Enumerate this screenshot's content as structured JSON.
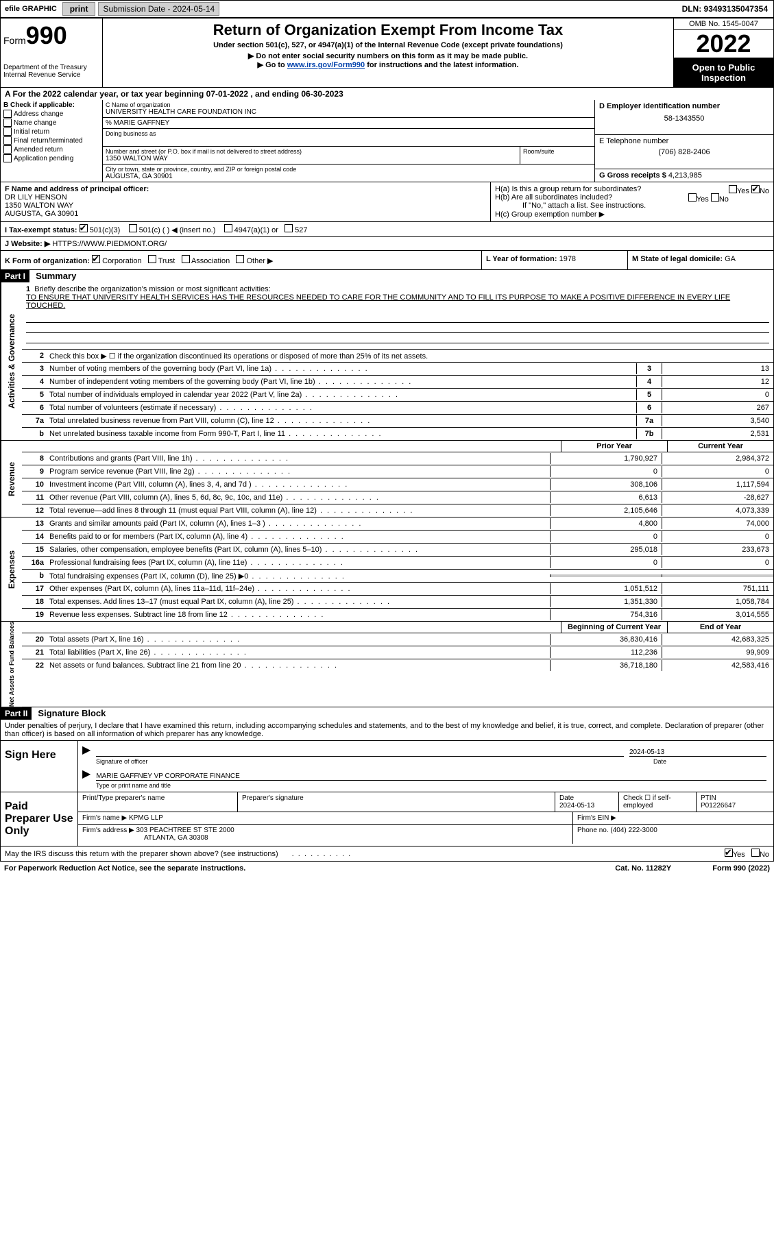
{
  "top": {
    "efile": "efile GRAPHIC",
    "print": "print",
    "sub_date_label": "Submission Date - 2024-05-14",
    "dln": "DLN: 93493135047354"
  },
  "header": {
    "form_prefix": "Form",
    "form_num": "990",
    "dept": "Department of the Treasury",
    "irs": "Internal Revenue Service",
    "title": "Return of Organization Exempt From Income Tax",
    "sub1": "Under section 501(c), 527, or 4947(a)(1) of the Internal Revenue Code (except private foundations)",
    "sub2": "▶ Do not enter social security numbers on this form as it may be made public.",
    "sub3_pre": "▶ Go to ",
    "sub3_link": "www.irs.gov/Form990",
    "sub3_post": " for instructions and the latest information.",
    "omb": "OMB No. 1545-0047",
    "year": "2022",
    "inspect": "Open to Public Inspection"
  },
  "A": {
    "text": "A For the 2022 calendar year, or tax year beginning 07-01-2022    , and ending 06-30-2023"
  },
  "B": {
    "label": "B Check if applicable:",
    "items": [
      "Address change",
      "Name change",
      "Initial return",
      "Final return/terminated",
      "Amended return",
      "Application pending"
    ]
  },
  "C": {
    "name_label": "C Name of organization",
    "name": "UNIVERSITY HEALTH CARE FOUNDATION INC",
    "care_of": "% MARIE GAFFNEY",
    "dba_label": "Doing business as",
    "street_label": "Number and street (or P.O. box if mail is not delivered to street address)",
    "street": "1350 WALTON WAY",
    "suite_label": "Room/suite",
    "city_label": "City or town, state or province, country, and ZIP or foreign postal code",
    "city": "AUGUSTA, GA  30901"
  },
  "D": {
    "ein_label": "D Employer identification number",
    "ein": "58-1343550",
    "tel_label": "E Telephone number",
    "tel": "(706) 828-2406",
    "gross_label": "G Gross receipts $",
    "gross": "4,213,985"
  },
  "F": {
    "label": "F  Name and address of principal officer:",
    "name": "DR LILY HENSON",
    "addr1": "1350 WALTON WAY",
    "addr2": "AUGUSTA, GA  30901"
  },
  "H": {
    "a": "H(a)  Is this a group return for subordinates?",
    "a_yes": "Yes",
    "a_no": "No",
    "b": "H(b)  Are all subordinates included?",
    "b_note": "If \"No,\" attach a list. See instructions.",
    "c": "H(c)  Group exemption number ▶"
  },
  "I": {
    "label": "I   Tax-exempt status:",
    "opt1": "501(c)(3)",
    "opt2": "501(c) (  ) ◀ (insert no.)",
    "opt3": "4947(a)(1) or",
    "opt4": "527"
  },
  "J": {
    "label": "J   Website: ▶",
    "url": "HTTPS://WWW.PIEDMONT.ORG/"
  },
  "K": {
    "label": "K Form of organization:",
    "opts": [
      "Corporation",
      "Trust",
      "Association",
      "Other ▶"
    ]
  },
  "L": {
    "label": "L Year of formation:",
    "val": "1978"
  },
  "M": {
    "label": "M State of legal domicile:",
    "val": "GA"
  },
  "part1": {
    "header": "Part I",
    "title": "Summary",
    "line1_label": "1",
    "line1_text": "Briefly describe the organization's mission or most significant activities:",
    "mission": "TO ENSURE THAT UNIVERSITY HEALTH SERVICES HAS THE RESOURCES NEEDED TO CARE FOR THE COMMUNITY AND TO FILL ITS PURPOSE TO MAKE A POSITIVE DIFFERENCE IN EVERY LIFE TOUCHED.",
    "line2": "Check this box ▶ ☐  if the organization discontinued its operations or disposed of more than 25% of its net assets.",
    "sideA": "Activities & Governance",
    "sideR": "Revenue",
    "sideE": "Expenses",
    "sideN": "Net Assets or Fund Balances",
    "gov_lines": [
      {
        "n": "3",
        "t": "Number of voting members of the governing body (Part VI, line 1a)",
        "b": "3",
        "v": "13"
      },
      {
        "n": "4",
        "t": "Number of independent voting members of the governing body (Part VI, line 1b)",
        "b": "4",
        "v": "12"
      },
      {
        "n": "5",
        "t": "Total number of individuals employed in calendar year 2022 (Part V, line 2a)",
        "b": "5",
        "v": "0"
      },
      {
        "n": "6",
        "t": "Total number of volunteers (estimate if necessary)",
        "b": "6",
        "v": "267"
      },
      {
        "n": "7a",
        "t": "Total unrelated business revenue from Part VIII, column (C), line 12",
        "b": "7a",
        "v": "3,540"
      },
      {
        "n": "b",
        "t": "Net unrelated business taxable income from Form 990-T, Part I, line 11",
        "b": "7b",
        "v": "2,531"
      }
    ],
    "col_prior": "Prior Year",
    "col_current": "Current Year",
    "rev_lines": [
      {
        "n": "8",
        "t": "Contributions and grants (Part VIII, line 1h)",
        "p": "1,790,927",
        "c": "2,984,372"
      },
      {
        "n": "9",
        "t": "Program service revenue (Part VIII, line 2g)",
        "p": "0",
        "c": "0"
      },
      {
        "n": "10",
        "t": "Investment income (Part VIII, column (A), lines 3, 4, and 7d )",
        "p": "308,106",
        "c": "1,117,594"
      },
      {
        "n": "11",
        "t": "Other revenue (Part VIII, column (A), lines 5, 6d, 8c, 9c, 10c, and 11e)",
        "p": "6,613",
        "c": "-28,627"
      },
      {
        "n": "12",
        "t": "Total revenue—add lines 8 through 11 (must equal Part VIII, column (A), line 12)",
        "p": "2,105,646",
        "c": "4,073,339"
      }
    ],
    "exp_lines": [
      {
        "n": "13",
        "t": "Grants and similar amounts paid (Part IX, column (A), lines 1–3 )",
        "p": "4,800",
        "c": "74,000"
      },
      {
        "n": "14",
        "t": "Benefits paid to or for members (Part IX, column (A), line 4)",
        "p": "0",
        "c": "0"
      },
      {
        "n": "15",
        "t": "Salaries, other compensation, employee benefits (Part IX, column (A), lines 5–10)",
        "p": "295,018",
        "c": "233,673"
      },
      {
        "n": "16a",
        "t": "Professional fundraising fees (Part IX, column (A), line 11e)",
        "p": "0",
        "c": "0"
      },
      {
        "n": "b",
        "t": "Total fundraising expenses (Part IX, column (D), line 25) ▶0",
        "p": "",
        "c": "",
        "shaded": true
      },
      {
        "n": "17",
        "t": "Other expenses (Part IX, column (A), lines 11a–11d, 11f–24e)",
        "p": "1,051,512",
        "c": "751,111"
      },
      {
        "n": "18",
        "t": "Total expenses. Add lines 13–17 (must equal Part IX, column (A), line 25)",
        "p": "1,351,330",
        "c": "1,058,784"
      },
      {
        "n": "19",
        "t": "Revenue less expenses. Subtract line 18 from line 12",
        "p": "754,316",
        "c": "3,014,555"
      }
    ],
    "col_begin": "Beginning of Current Year",
    "col_end": "End of Year",
    "net_lines": [
      {
        "n": "20",
        "t": "Total assets (Part X, line 16)",
        "p": "36,830,416",
        "c": "42,683,325"
      },
      {
        "n": "21",
        "t": "Total liabilities (Part X, line 26)",
        "p": "112,236",
        "c": "99,909"
      },
      {
        "n": "22",
        "t": "Net assets or fund balances. Subtract line 21 from line 20",
        "p": "36,718,180",
        "c": "42,583,416"
      }
    ]
  },
  "part2": {
    "header": "Part II",
    "title": "Signature Block",
    "decl": "Under penalties of perjury, I declare that I have examined this return, including accompanying schedules and statements, and to the best of my knowledge and belief, it is true, correct, and complete. Declaration of preparer (other than officer) is based on all information of which preparer has any knowledge.",
    "sign_here": "Sign Here",
    "sig_of_officer": "Signature of officer",
    "sig_date": "2024-05-13",
    "date_label": "Date",
    "officer_name": "MARIE GAFFNEY  VP CORPORATE FINANCE",
    "type_name": "Type or print name and title",
    "paid": "Paid Preparer Use Only",
    "prep_name_label": "Print/Type preparer's name",
    "prep_sig_label": "Preparer's signature",
    "prep_date": "2024-05-13",
    "check_if": "Check ☐ if self-employed",
    "ptin_label": "PTIN",
    "ptin": "P01226647",
    "firm_name_label": "Firm's name    ▶",
    "firm_name": "KPMG LLP",
    "firm_ein_label": "Firm's EIN ▶",
    "firm_addr_label": "Firm's address ▶",
    "firm_addr1": "303 PEACHTREE ST STE 2000",
    "firm_addr2": "ATLANTA, GA  30308",
    "phone_label": "Phone no.",
    "phone": "(404) 222-3000",
    "discuss": "May the IRS discuss this return with the preparer shown above? (see instructions)",
    "yes": "Yes",
    "no": "No"
  },
  "footer": {
    "left": "For Paperwork Reduction Act Notice, see the separate instructions.",
    "mid": "Cat. No. 11282Y",
    "right": "Form 990 (2022)"
  }
}
